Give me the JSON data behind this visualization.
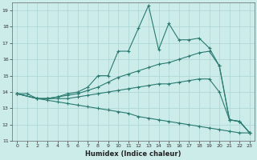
{
  "xlabel": "Humidex (Indice chaleur)",
  "background_color": "#ccecea",
  "grid_color": "#aad4d2",
  "line_color": "#2a7a70",
  "xlim": [
    -0.5,
    23.5
  ],
  "ylim": [
    11,
    19.5
  ],
  "xticks": [
    0,
    1,
    2,
    3,
    4,
    5,
    6,
    7,
    8,
    9,
    10,
    11,
    12,
    13,
    14,
    15,
    16,
    17,
    18,
    19,
    20,
    21,
    22,
    23
  ],
  "yticks": [
    11,
    12,
    13,
    14,
    15,
    16,
    17,
    18,
    19
  ],
  "line1_x": [
    0,
    1,
    2,
    3,
    4,
    5,
    6,
    7,
    8,
    9,
    10,
    11,
    12,
    13,
    14,
    15,
    16,
    17,
    18,
    19,
    20,
    21,
    22,
    23
  ],
  "line1_y": [
    13.9,
    13.9,
    13.6,
    13.6,
    13.7,
    13.9,
    14.0,
    14.3,
    15.0,
    15.0,
    16.5,
    16.5,
    17.9,
    19.3,
    16.6,
    18.2,
    17.2,
    17.2,
    17.3,
    16.7,
    15.6,
    12.3,
    12.2,
    11.5
  ],
  "line2_x": [
    0,
    2,
    3,
    4,
    5,
    6,
    7,
    8,
    9,
    10,
    11,
    12,
    13,
    14,
    15,
    16,
    17,
    18,
    19,
    20,
    21,
    22,
    23
  ],
  "line2_y": [
    13.9,
    13.6,
    13.6,
    13.7,
    13.8,
    13.9,
    14.1,
    14.3,
    14.6,
    14.9,
    15.1,
    15.3,
    15.5,
    15.7,
    15.8,
    16.0,
    16.2,
    16.4,
    16.5,
    15.6,
    12.3,
    12.2,
    11.5
  ],
  "line3_x": [
    0,
    2,
    3,
    4,
    5,
    6,
    7,
    8,
    9,
    10,
    11,
    12,
    13,
    14,
    15,
    16,
    17,
    18,
    19,
    20,
    21,
    22,
    23
  ],
  "line3_y": [
    13.9,
    13.6,
    13.6,
    13.6,
    13.6,
    13.7,
    13.8,
    13.9,
    14.0,
    14.1,
    14.2,
    14.3,
    14.4,
    14.5,
    14.5,
    14.6,
    14.7,
    14.8,
    14.8,
    14.0,
    12.3,
    12.2,
    11.5
  ],
  "line4_x": [
    0,
    2,
    3,
    4,
    5,
    6,
    7,
    8,
    9,
    10,
    11,
    12,
    13,
    14,
    15,
    16,
    17,
    18,
    19,
    20,
    21,
    22,
    23
  ],
  "line4_y": [
    13.9,
    13.6,
    13.5,
    13.4,
    13.3,
    13.2,
    13.1,
    13.0,
    12.9,
    12.8,
    12.7,
    12.5,
    12.4,
    12.3,
    12.2,
    12.1,
    12.0,
    11.9,
    11.8,
    11.7,
    11.6,
    11.5,
    11.5
  ]
}
